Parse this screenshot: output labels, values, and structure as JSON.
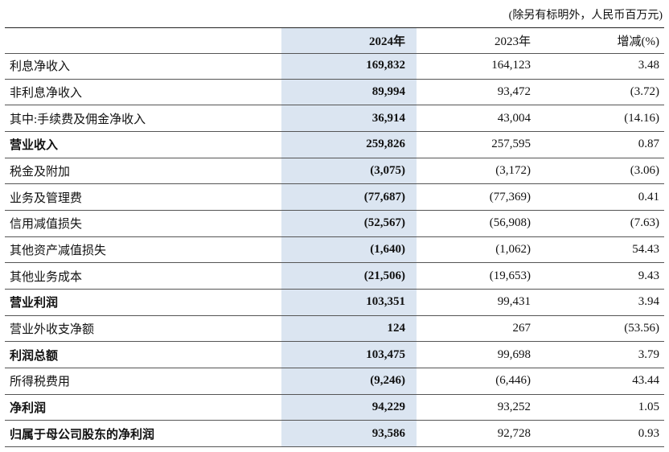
{
  "note": "(除另有标明外，人民币百万元)",
  "table": {
    "columns": [
      "2024年",
      "2023年",
      "增减(%)"
    ],
    "rows": [
      {
        "label": "利息净收入",
        "values": [
          "169,832",
          "164,123",
          "3.48"
        ],
        "bold": false
      },
      {
        "label": "非利息净收入",
        "values": [
          "89,994",
          "93,472",
          "(3.72)"
        ],
        "bold": false
      },
      {
        "label": "其中:手续费及佣金净收入",
        "values": [
          "36,914",
          "43,004",
          "(14.16)"
        ],
        "bold": false
      },
      {
        "label": "营业收入",
        "values": [
          "259,826",
          "257,595",
          "0.87"
        ],
        "bold": true
      },
      {
        "label": "税金及附加",
        "values": [
          "(3,075)",
          "(3,172)",
          "(3.06)"
        ],
        "bold": false
      },
      {
        "label": "业务及管理费",
        "values": [
          "(77,687)",
          "(77,369)",
          "0.41"
        ],
        "bold": false
      },
      {
        "label": "信用减值损失",
        "values": [
          "(52,567)",
          "(56,908)",
          "(7.63)"
        ],
        "bold": false
      },
      {
        "label": "其他资产减值损失",
        "values": [
          "(1,640)",
          "(1,062)",
          "54.43"
        ],
        "bold": false
      },
      {
        "label": "其他业务成本",
        "values": [
          "(21,506)",
          "(19,653)",
          "9.43"
        ],
        "bold": false
      },
      {
        "label": "营业利润",
        "values": [
          "103,351",
          "99,431",
          "3.94"
        ],
        "bold": true
      },
      {
        "label": "营业外收支净额",
        "values": [
          "124",
          "267",
          "(53.56)"
        ],
        "bold": false
      },
      {
        "label": "利润总额",
        "values": [
          "103,475",
          "99,698",
          "3.79"
        ],
        "bold": true
      },
      {
        "label": "所得税费用",
        "values": [
          "(9,246)",
          "(6,446)",
          "43.44"
        ],
        "bold": false
      },
      {
        "label": "净利润",
        "values": [
          "94,229",
          "93,252",
          "1.05"
        ],
        "bold": true
      },
      {
        "label": "归属于母公司股东的净利润",
        "values": [
          "93,586",
          "92,728",
          "0.93"
        ],
        "bold": true
      }
    ]
  }
}
